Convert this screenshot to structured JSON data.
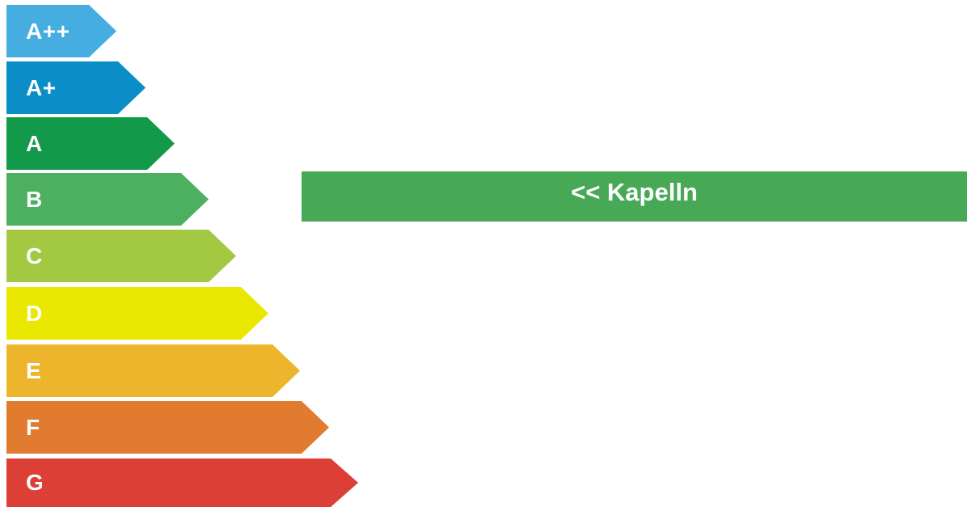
{
  "ratings": [
    {
      "label": "A++",
      "color": "#46ade0"
    },
    {
      "label": "A+",
      "color": "#0b8ec8"
    },
    {
      "label": "A",
      "color": "#12994a"
    },
    {
      "label": "B",
      "color": "#4db060"
    },
    {
      "label": "C",
      "color": "#a3c943"
    },
    {
      "label": "D",
      "color": "#eae800"
    },
    {
      "label": "E",
      "color": "#edb52b"
    },
    {
      "label": "F",
      "color": "#e07b30"
    },
    {
      "label": "G",
      "color": "#db3f36"
    }
  ],
  "indicator": {
    "text": "<< Kapelln",
    "color": "#47a956"
  }
}
